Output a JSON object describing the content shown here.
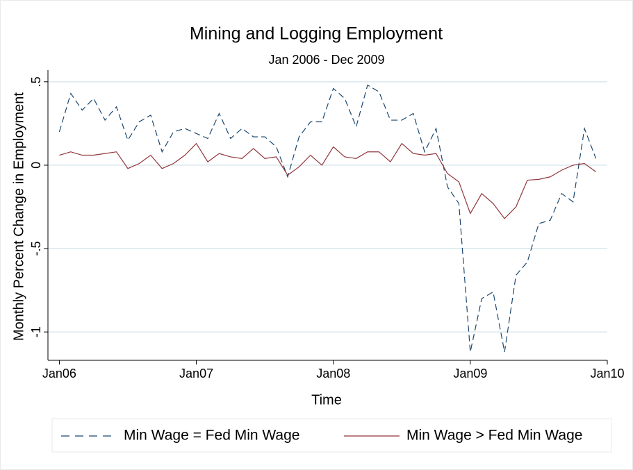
{
  "chart_data": {
    "type": "line",
    "title": "Mining and Logging Employment",
    "subtitle": "Jan 2006 - Dec 2009",
    "x_label": "Time",
    "y_label": "Monthly Percent Change in Employment",
    "x": [
      "2006-01",
      "2006-02",
      "2006-03",
      "2006-04",
      "2006-05",
      "2006-06",
      "2006-07",
      "2006-08",
      "2006-09",
      "2006-10",
      "2006-11",
      "2006-12",
      "2007-01",
      "2007-02",
      "2007-03",
      "2007-04",
      "2007-05",
      "2007-06",
      "2007-07",
      "2007-08",
      "2007-09",
      "2007-10",
      "2007-11",
      "2007-12",
      "2008-01",
      "2008-02",
      "2008-03",
      "2008-04",
      "2008-05",
      "2008-06",
      "2008-07",
      "2008-08",
      "2008-09",
      "2008-10",
      "2008-11",
      "2008-12",
      "2009-01",
      "2009-02",
      "2009-03",
      "2009-04",
      "2009-05",
      "2009-06",
      "2009-07",
      "2009-08",
      "2009-09",
      "2009-10",
      "2009-11",
      "2009-12"
    ],
    "series": [
      {
        "name": "Min Wage = Fed Min Wage",
        "color": "#1a476f",
        "dash": true,
        "values": [
          0.2,
          0.43,
          0.33,
          0.4,
          0.27,
          0.35,
          0.15,
          0.26,
          0.3,
          0.08,
          0.2,
          0.22,
          0.19,
          0.16,
          0.31,
          0.16,
          0.22,
          0.17,
          0.17,
          0.11,
          -0.07,
          0.17,
          0.26,
          0.26,
          0.46,
          0.4,
          0.23,
          0.48,
          0.44,
          0.27,
          0.27,
          0.31,
          0.08,
          0.22,
          -0.13,
          -0.23,
          -1.12,
          -0.8,
          -0.76,
          -1.12,
          -0.66,
          -0.58,
          -0.35,
          -0.33,
          -0.17,
          -0.22,
          0.22,
          0.04
        ]
      },
      {
        "name": "Min Wage > Fed Min Wage",
        "color": "#90353b",
        "dash": false,
        "values": [
          0.06,
          0.08,
          0.06,
          0.06,
          0.07,
          0.08,
          -0.02,
          0.01,
          0.06,
          -0.02,
          0.01,
          0.06,
          0.13,
          0.02,
          0.07,
          0.05,
          0.04,
          0.1,
          0.04,
          0.05,
          -0.06,
          -0.01,
          0.06,
          0.0,
          0.11,
          0.05,
          0.04,
          0.08,
          0.08,
          0.02,
          0.13,
          0.07,
          0.06,
          0.07,
          -0.05,
          -0.1,
          -0.29,
          -0.17,
          -0.23,
          -0.32,
          -0.25,
          -0.09,
          -0.085,
          -0.07,
          -0.03,
          0.0,
          0.01,
          -0.04
        ]
      }
    ],
    "xlim": [
      "2005-12",
      "2010-01"
    ],
    "xticks": [
      {
        "value": "2006-01",
        "label": "Jan06"
      },
      {
        "value": "2007-01",
        "label": "Jan07"
      },
      {
        "value": "2008-01",
        "label": "Jan08"
      },
      {
        "value": "2009-01",
        "label": "Jan09"
      },
      {
        "value": "2010-01",
        "label": "Jan10"
      }
    ],
    "ylim": [
      -1.17,
      0.57
    ],
    "yticks": [
      {
        "value": -1,
        "label": "-1"
      },
      {
        "value": -0.5,
        "label": "-.5"
      },
      0,
      {
        "value": 0.5,
        "label": ".5"
      }
    ],
    "grid": true,
    "legend": "bottom"
  }
}
